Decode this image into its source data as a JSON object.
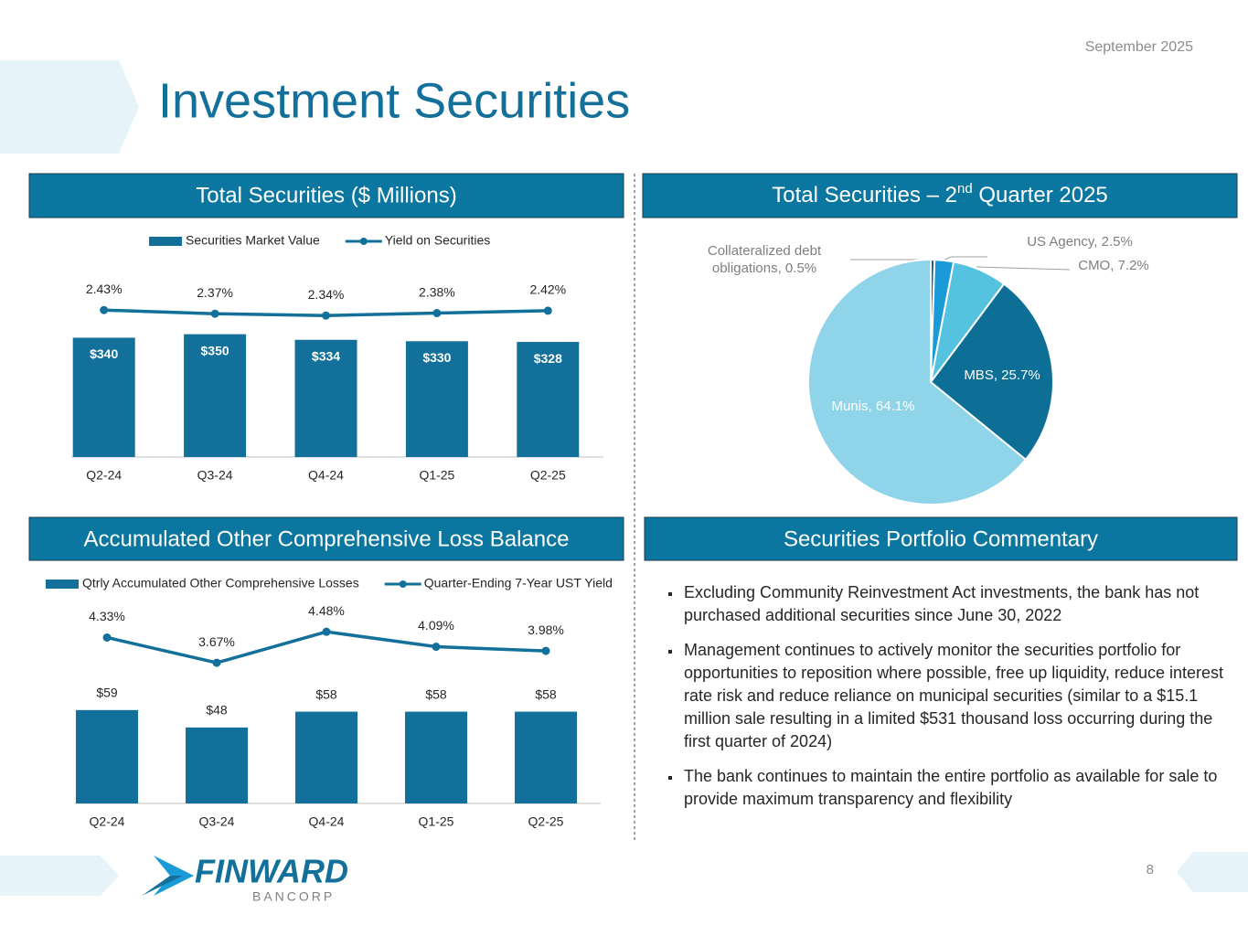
{
  "header": {
    "date": "September 2025",
    "title": "Investment Securities"
  },
  "chart_data": [
    {
      "type": "combo",
      "title": "Total Securities ($ Millions)",
      "categories": [
        "Q2-24",
        "Q3-24",
        "Q4-24",
        "Q1-25",
        "Q2-25"
      ],
      "series": [
        {
          "name": "Securities Market Value",
          "type": "bar",
          "color": "#12709a",
          "values": [
            340,
            350,
            334,
            330,
            328
          ],
          "value_labels": [
            "$340",
            "$350",
            "$334",
            "$330",
            "$328"
          ]
        },
        {
          "name": "Yield on Securities",
          "type": "line",
          "axis": "y2",
          "color": "#12709a",
          "values": [
            2.43,
            2.37,
            2.34,
            2.38,
            2.42
          ],
          "value_labels": [
            "2.43%",
            "2.37%",
            "2.34%",
            "2.38%",
            "2.42%"
          ]
        }
      ],
      "ylim": [
        0,
        560
      ],
      "y2lim": [
        0,
        3.25
      ],
      "legend": "top"
    },
    {
      "type": "pie",
      "title": [
        "Total Securities – 2",
        "nd",
        " Quarter 2025"
      ],
      "values": [
        0.5,
        2.5,
        7.2,
        25.7,
        64.1
      ],
      "value_labels": [
        "Collateralized debt obligations, 0.5%",
        "US Agency, 2.5%",
        "CMO, 7.2%",
        "MBS, 25.7%",
        "Munis, 64.1%"
      ],
      "colors": [
        "#1f5f8b",
        "#1a9bd7",
        "#55c3e0",
        "#0e6f96",
        "#8fd4e8"
      ]
    },
    {
      "type": "combo",
      "title": "Accumulated Other Comprehensive Loss Balance",
      "categories": [
        "Q2-24",
        "Q3-24",
        "Q4-24",
        "Q1-25",
        "Q2-25"
      ],
      "series": [
        {
          "name": "Qtrly Accumulated Other Comprehensive Losses",
          "type": "bar",
          "color": "#12709a",
          "values": [
            59,
            48,
            58,
            58,
            58
          ],
          "value_labels": [
            "$59",
            "$48",
            "$58",
            "$58",
            "$58"
          ]
        },
        {
          "name": "Quarter-Ending 7-Year UST Yield",
          "type": "line",
          "axis": "y2",
          "color": "#12709a",
          "values": [
            4.33,
            3.67,
            4.48,
            4.09,
            3.98
          ],
          "value_labels": [
            "4.33%",
            "3.67%",
            "4.48%",
            "4.09%",
            "3.98%"
          ]
        }
      ],
      "ylim": [
        0,
        138
      ],
      "y2lim": [
        0,
        5.7
      ],
      "legend": "top"
    }
  ],
  "commentary": {
    "title": "Securities Portfolio Commentary",
    "bullets": [
      "Excluding Community Reinvestment Act investments, the bank has not purchased additional securities since June 30, 2022",
      "Management continues to actively monitor the securities portfolio for opportunities to reposition where possible, free up liquidity, reduce interest rate risk and reduce reliance on municipal securities (similar to a $15.1 million sale resulting in a limited $531 thousand loss occurring during the first quarter of 2024)",
      "The bank continues to maintain the entire portfolio as available for sale to provide maximum transparency and flexibility"
    ]
  },
  "footer": {
    "logo": "FINWARD",
    "logo_sub": "BANCORP",
    "page": "8"
  }
}
